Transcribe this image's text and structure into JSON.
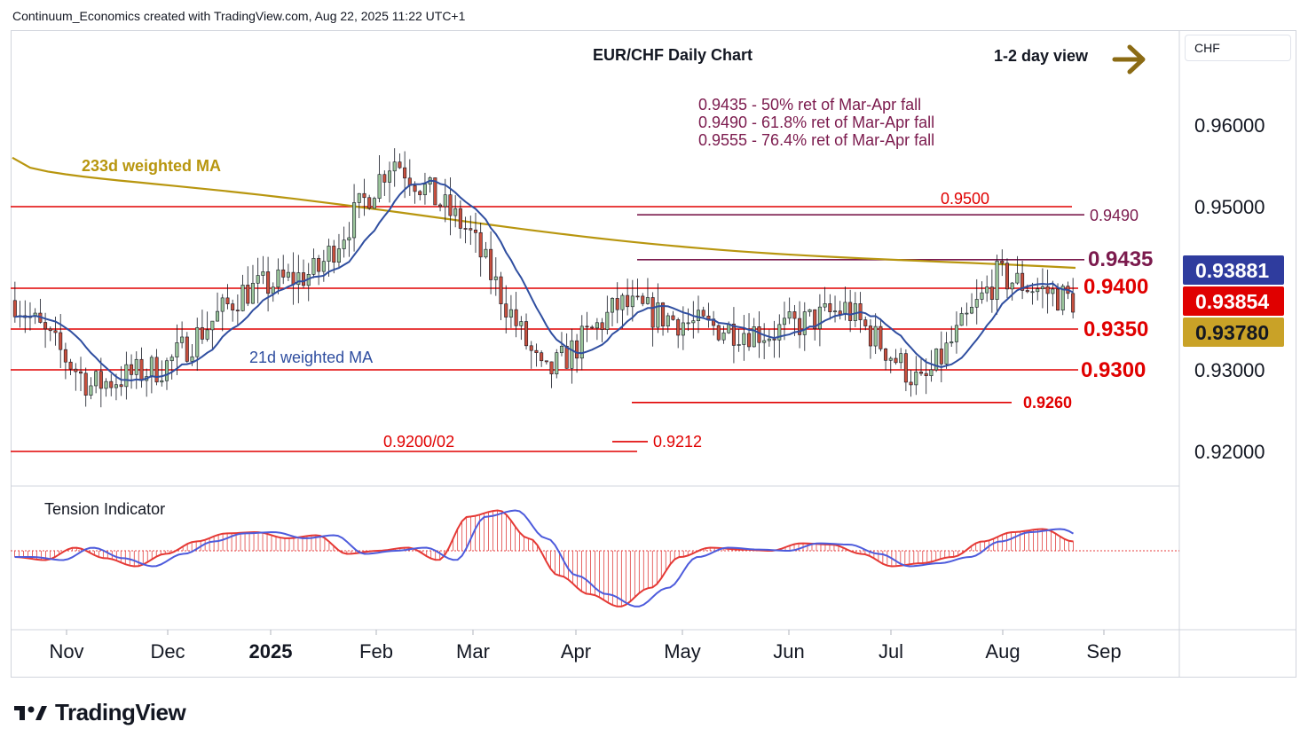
{
  "header": {
    "attribution": "Continuum_Economics created with TradingView.com, Aug 22, 2025 11:22 UTC+1"
  },
  "currency": "CHF",
  "branding": {
    "logo_text": "TradingView"
  },
  "chart_data": {
    "type": "candlestick",
    "title": "EUR/CHF Daily Chart",
    "view_label": "1-2 day view",
    "view_direction": "sideways-up",
    "y_axis": {
      "ticks": [
        0.96,
        0.95,
        0.93,
        0.92
      ],
      "tick_labels": [
        "0.96000",
        "0.95000",
        "0.93000",
        "0.92000"
      ],
      "range": [
        0.914,
        0.967
      ]
    },
    "x_axis": {
      "labels": [
        "Nov",
        "Dec",
        "2025",
        "Feb",
        "Mar",
        "Apr",
        "May",
        "Jun",
        "Jul",
        "Aug",
        "Sep"
      ]
    },
    "notes": [
      "0.9435 - 50% ret of Mar-Apr fall",
      "0.9490 - 61.8% ret of Mar-Apr fall",
      "0.9555 - 76.4% ret of Mar-Apr fall"
    ],
    "levels": [
      {
        "value": 0.95,
        "label": "0.9500",
        "color": "#e00000"
      },
      {
        "value": 0.949,
        "label": "0.9490",
        "color": "#7b1a4d"
      },
      {
        "value": 0.9435,
        "label": "0.9435",
        "color": "#7b1a4d"
      },
      {
        "value": 0.94,
        "label": "0.9400",
        "color": "#e00000"
      },
      {
        "value": 0.935,
        "label": "0.9350",
        "color": "#e00000"
      },
      {
        "value": 0.93,
        "label": "0.9300",
        "color": "#e00000"
      },
      {
        "value": 0.926,
        "label": "0.9260",
        "color": "#e00000"
      },
      {
        "value": 0.9212,
        "label": "0.9212",
        "color": "#e00000"
      },
      {
        "value": 0.92,
        "label": "0.9200/02",
        "color": "#e00000"
      }
    ],
    "price_tags": [
      {
        "label": "0.93881",
        "value": 0.93881,
        "color": "#2f3c9e"
      },
      {
        "label": "0.93854",
        "value": 0.93854,
        "color": "#e00000"
      },
      {
        "label": "0.93780",
        "value": 0.9378,
        "color": "#c9a227"
      }
    ],
    "series_labels": {
      "ma233": "233d weighted MA",
      "ma21": "21d weighted MA"
    },
    "colors": {
      "up": "#26a69a",
      "down": "#e00000",
      "ma21": "#2f4ea0",
      "ma233": "#b8960f",
      "candle_up": "#9bc59b",
      "candle_down": "#c9503e"
    },
    "monthly_closes": [
      0.9385,
      0.928,
      0.9305,
      0.9395,
      0.942,
      0.956,
      0.947,
      0.929,
      0.938,
      0.9355,
      0.9345,
      0.9375,
      0.928,
      0.9415,
      0.9385
    ],
    "indicator": {
      "name": "Tension Indicator",
      "values": [
        -0.1,
        -0.15,
        0.05,
        -0.12,
        -0.25,
        -0.05,
        0.15,
        0.28,
        0.3,
        0.2,
        0.25,
        -0.05,
        0.0,
        0.05,
        -0.15,
        0.55,
        0.65,
        0.2,
        -0.4,
        -0.7,
        -0.9,
        -0.6,
        -0.1,
        0.05,
        0.02,
        0.0,
        0.12,
        0.1,
        -0.05,
        -0.25,
        -0.2,
        -0.1,
        0.15,
        0.3,
        0.35,
        0.15
      ]
    }
  }
}
